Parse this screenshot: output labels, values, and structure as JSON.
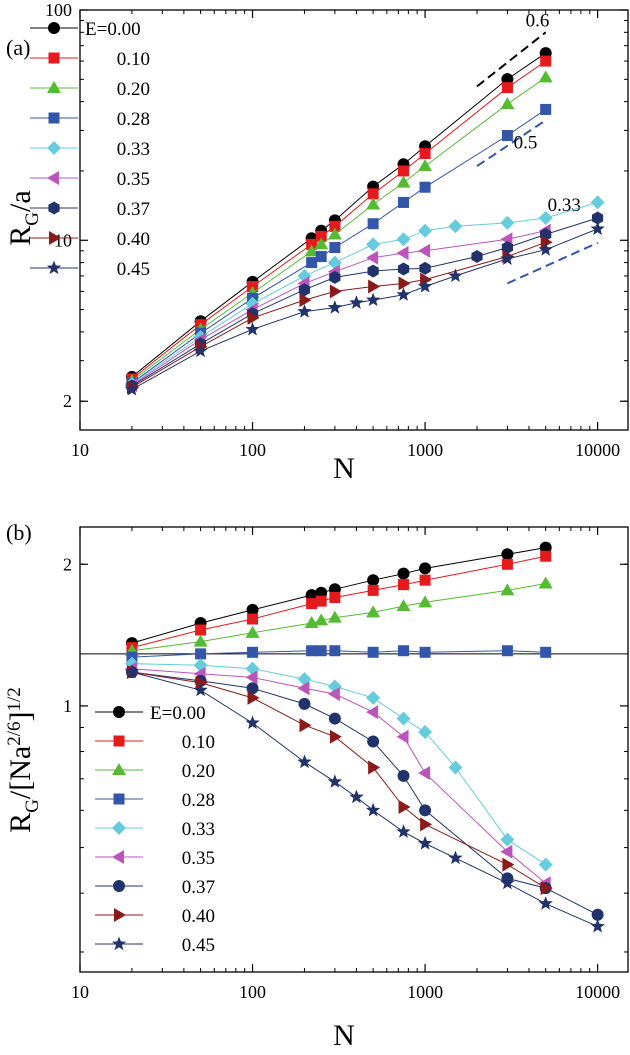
{
  "chart_data": [
    {
      "panel": "(a)",
      "type": "line",
      "xscale": "log",
      "yscale": "log",
      "xlim": [
        10,
        15000
      ],
      "ylim": [
        1.5,
        100
      ],
      "xlabel": "N",
      "ylabel": "R_G/a",
      "xticks": [
        {
          "v": 10,
          "t": "10"
        },
        {
          "v": 100,
          "t": "100"
        },
        {
          "v": 1000,
          "t": "1000"
        },
        {
          "v": 10000,
          "t": "10000"
        }
      ],
      "yticks": [
        {
          "v": 2,
          "t": "2"
        },
        {
          "v": 10,
          "t": "10"
        },
        {
          "v": 100,
          "t": "100"
        }
      ],
      "legend_position": "top-left",
      "series": [
        {
          "name": "E=0.00",
          "color": "#000000",
          "marker": "circle",
          "x": [
            20,
            50,
            100,
            220,
            250,
            300,
            500,
            750,
            1000,
            3000,
            5000
          ],
          "y": [
            2.55,
            4.45,
            6.6,
            10.2,
            11.0,
            12.2,
            17.1,
            21.4,
            25.6,
            50.1,
            65.0
          ]
        },
        {
          "name": "0.10",
          "color": "#e41a1c",
          "marker": "square",
          "x": [
            20,
            50,
            100,
            220,
            250,
            300,
            500,
            750,
            1000,
            3000,
            5000
          ],
          "y": [
            2.5,
            4.3,
            6.3,
            9.6,
            10.4,
            11.5,
            15.9,
            20.0,
            23.8,
            46.0,
            60.0
          ]
        },
        {
          "name": "0.20",
          "color": "#55bb33",
          "marker": "triangle-up",
          "x": [
            20,
            50,
            100,
            220,
            250,
            300,
            500,
            750,
            1000,
            3000,
            5000
          ],
          "y": [
            2.45,
            4.1,
            5.9,
            8.95,
            9.6,
            10.6,
            14.3,
            17.8,
            21.0,
            39.0,
            51.0
          ]
        },
        {
          "name": "0.28",
          "color": "#3355aa",
          "marker": "square",
          "x": [
            20,
            50,
            100,
            220,
            250,
            300,
            500,
            750,
            1000,
            3000,
            5000
          ],
          "y": [
            2.4,
            3.95,
            5.6,
            8.0,
            8.5,
            9.3,
            11.8,
            14.6,
            17.0,
            28.5,
            37.0
          ]
        },
        {
          "name": "0.33",
          "color": "#66ccdd",
          "marker": "diamond",
          "x": [
            20,
            50,
            100,
            200,
            300,
            500,
            750,
            1000,
            1500,
            3000,
            5000,
            10000
          ],
          "y": [
            2.38,
            3.8,
            5.3,
            7.0,
            8.0,
            9.6,
            10.1,
            11.0,
            11.5,
            11.9,
            12.5,
            14.6
          ]
        },
        {
          "name": "0.35",
          "color": "#bb55bb",
          "marker": "triangle-left",
          "x": [
            20,
            50,
            100,
            200,
            300,
            500,
            750,
            1000,
            3000,
            5000
          ],
          "y": [
            2.35,
            3.7,
            5.0,
            6.5,
            7.3,
            8.4,
            8.8,
            9.0,
            10.1,
            11.0
          ]
        },
        {
          "name": "0.37",
          "color": "#22336b",
          "marker": "hexagon",
          "x": [
            20,
            50,
            100,
            200,
            300,
            500,
            750,
            1000,
            2000,
            3000,
            5000,
            10000
          ],
          "y": [
            2.33,
            3.55,
            4.8,
            6.1,
            6.9,
            7.35,
            7.5,
            7.55,
            8.5,
            9.3,
            10.6,
            12.5
          ]
        },
        {
          "name": "0.40",
          "color": "#8b1a1a",
          "marker": "triangle-right",
          "x": [
            20,
            50,
            100,
            200,
            300,
            500,
            750,
            1000,
            3000,
            5000
          ],
          "y": [
            2.3,
            3.45,
            4.6,
            5.5,
            6.0,
            6.3,
            6.5,
            6.75,
            8.5,
            9.8
          ]
        },
        {
          "name": "0.45",
          "color": "#22336b",
          "marker": "star",
          "x": [
            20,
            50,
            100,
            200,
            300,
            400,
            500,
            750,
            1000,
            1500,
            3000,
            5000,
            10000
          ],
          "y": [
            2.25,
            3.3,
            4.1,
            4.9,
            5.1,
            5.35,
            5.5,
            5.8,
            6.3,
            7.0,
            8.3,
            9.1,
            11.2
          ]
        }
      ],
      "guide_lines": [
        {
          "label": "0.6",
          "x": [
            2000,
            5000
          ],
          "y": [
            46.6,
            80.0
          ],
          "color": "#000000"
        },
        {
          "label": "0.5",
          "x": [
            2000,
            5000
          ],
          "y": [
            21.0,
            33.2
          ],
          "color": "#3355aa"
        },
        {
          "label": "0.33",
          "x": [
            3000,
            10000
          ],
          "y": [
            6.5,
            9.75
          ],
          "color": "#3355aa"
        }
      ]
    },
    {
      "panel": "(b)",
      "type": "line",
      "xscale": "log",
      "yscale": "log",
      "xlim": [
        10,
        15000
      ],
      "ylim": [
        0.272,
        2.4
      ],
      "xlabel": "N",
      "ylabel": "R_G/[Na^2/6]^1/2",
      "xticks": [
        {
          "v": 10,
          "t": "10"
        },
        {
          "v": 100,
          "t": "100"
        },
        {
          "v": 1000,
          "t": "1000"
        },
        {
          "v": 10000,
          "t": "10000"
        }
      ],
      "yticks": [
        {
          "v": 1,
          "t": "1"
        },
        {
          "v": 2,
          "t": "2"
        }
      ],
      "reference_line_y": 1.29,
      "legend_position": "bottom-left",
      "series": [
        {
          "name": "E=0.00",
          "color": "#000000",
          "marker": "circle",
          "x": [
            20,
            50,
            100,
            220,
            250,
            300,
            500,
            750,
            1000,
            3000,
            5000
          ],
          "y": [
            1.36,
            1.5,
            1.6,
            1.72,
            1.74,
            1.77,
            1.85,
            1.91,
            1.96,
            2.1,
            2.17
          ]
        },
        {
          "name": "0.10",
          "color": "#e41a1c",
          "marker": "square",
          "x": [
            20,
            50,
            100,
            220,
            250,
            300,
            500,
            750,
            1000,
            3000,
            5000
          ],
          "y": [
            1.33,
            1.45,
            1.53,
            1.65,
            1.67,
            1.7,
            1.76,
            1.81,
            1.85,
            2.0,
            2.08
          ]
        },
        {
          "name": "0.20",
          "color": "#55bb33",
          "marker": "triangle-up",
          "x": [
            20,
            50,
            100,
            220,
            250,
            300,
            500,
            750,
            1000,
            3000,
            5000
          ],
          "y": [
            1.31,
            1.37,
            1.43,
            1.5,
            1.52,
            1.54,
            1.58,
            1.63,
            1.66,
            1.76,
            1.82
          ]
        },
        {
          "name": "0.28",
          "color": "#3355aa",
          "marker": "square",
          "x": [
            20,
            50,
            100,
            220,
            250,
            300,
            500,
            750,
            1000,
            3000,
            5000
          ],
          "y": [
            1.27,
            1.29,
            1.3,
            1.31,
            1.31,
            1.31,
            1.3,
            1.31,
            1.3,
            1.31,
            1.3
          ]
        },
        {
          "name": "0.33",
          "color": "#66ccdd",
          "marker": "diamond",
          "x": [
            20,
            50,
            100,
            200,
            300,
            500,
            750,
            1000,
            1500,
            3000,
            5000
          ],
          "y": [
            1.23,
            1.22,
            1.2,
            1.14,
            1.1,
            1.04,
            0.94,
            0.88,
            0.74,
            0.52,
            0.46
          ]
        },
        {
          "name": "0.35",
          "color": "#bb55bb",
          "marker": "triangle-left",
          "x": [
            20,
            50,
            100,
            200,
            300,
            500,
            750,
            1000,
            3000,
            5000
          ],
          "y": [
            1.2,
            1.17,
            1.15,
            1.09,
            1.06,
            0.97,
            0.86,
            0.72,
            0.49,
            0.42
          ]
        },
        {
          "name": "0.37",
          "color": "#22336b",
          "marker": "circle",
          "x": [
            20,
            50,
            100,
            200,
            300,
            500,
            750,
            1000,
            3000,
            5000,
            10000
          ],
          "y": [
            1.18,
            1.13,
            1.09,
            1.01,
            0.94,
            0.84,
            0.71,
            0.6,
            0.43,
            0.41,
            0.36
          ]
        },
        {
          "name": "0.40",
          "color": "#8b1a1a",
          "marker": "triangle-right",
          "x": [
            20,
            50,
            100,
            200,
            300,
            500,
            750,
            1000,
            3000,
            5000
          ],
          "y": [
            1.18,
            1.12,
            1.04,
            0.91,
            0.86,
            0.74,
            0.61,
            0.56,
            0.46,
            0.41
          ]
        },
        {
          "name": "0.45",
          "color": "#22336b",
          "marker": "star",
          "x": [
            20,
            50,
            100,
            200,
            300,
            400,
            500,
            750,
            1000,
            1500,
            3000,
            5000,
            10000
          ],
          "y": [
            1.18,
            1.08,
            0.92,
            0.76,
            0.69,
            0.64,
            0.6,
            0.54,
            0.51,
            0.475,
            0.42,
            0.38,
            0.34
          ]
        }
      ]
    }
  ]
}
